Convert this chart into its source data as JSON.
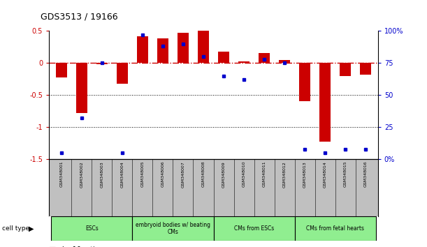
{
  "title": "GDS3513 / 19166",
  "samples": [
    "GSM348001",
    "GSM348002",
    "GSM348003",
    "GSM348004",
    "GSM348005",
    "GSM348006",
    "GSM348007",
    "GSM348008",
    "GSM348009",
    "GSM348010",
    "GSM348011",
    "GSM348012",
    "GSM348013",
    "GSM348014",
    "GSM348015",
    "GSM348016"
  ],
  "log10_ratio": [
    -0.22,
    -0.78,
    -0.02,
    -0.32,
    0.42,
    0.38,
    0.47,
    0.5,
    0.18,
    0.02,
    0.15,
    0.05,
    -0.6,
    -1.22,
    -0.2,
    -0.18
  ],
  "percentile": [
    5,
    32,
    75,
    5,
    97,
    88,
    90,
    80,
    65,
    62,
    78,
    75,
    8,
    5,
    8,
    8
  ],
  "cell_types": [
    {
      "label": "ESCs",
      "start": 0,
      "end": 3,
      "color": "#90EE90"
    },
    {
      "label": "embryoid bodies w/ beating\nCMs",
      "start": 4,
      "end": 7,
      "color": "#90EE90"
    },
    {
      "label": "CMs from ESCs",
      "start": 8,
      "end": 11,
      "color": "#90EE90"
    },
    {
      "label": "CMs from fetal hearts",
      "start": 12,
      "end": 15,
      "color": "#90EE90"
    }
  ],
  "ylim_left": [
    -1.5,
    0.5
  ],
  "ylim_right": [
    0,
    100
  ],
  "bar_color_red": "#CC0000",
  "bar_color_blue": "#0000CC",
  "zero_line_color": "#CC0000",
  "dot_line_color": "black",
  "background": "white",
  "label_bg": "#C0C0C0"
}
